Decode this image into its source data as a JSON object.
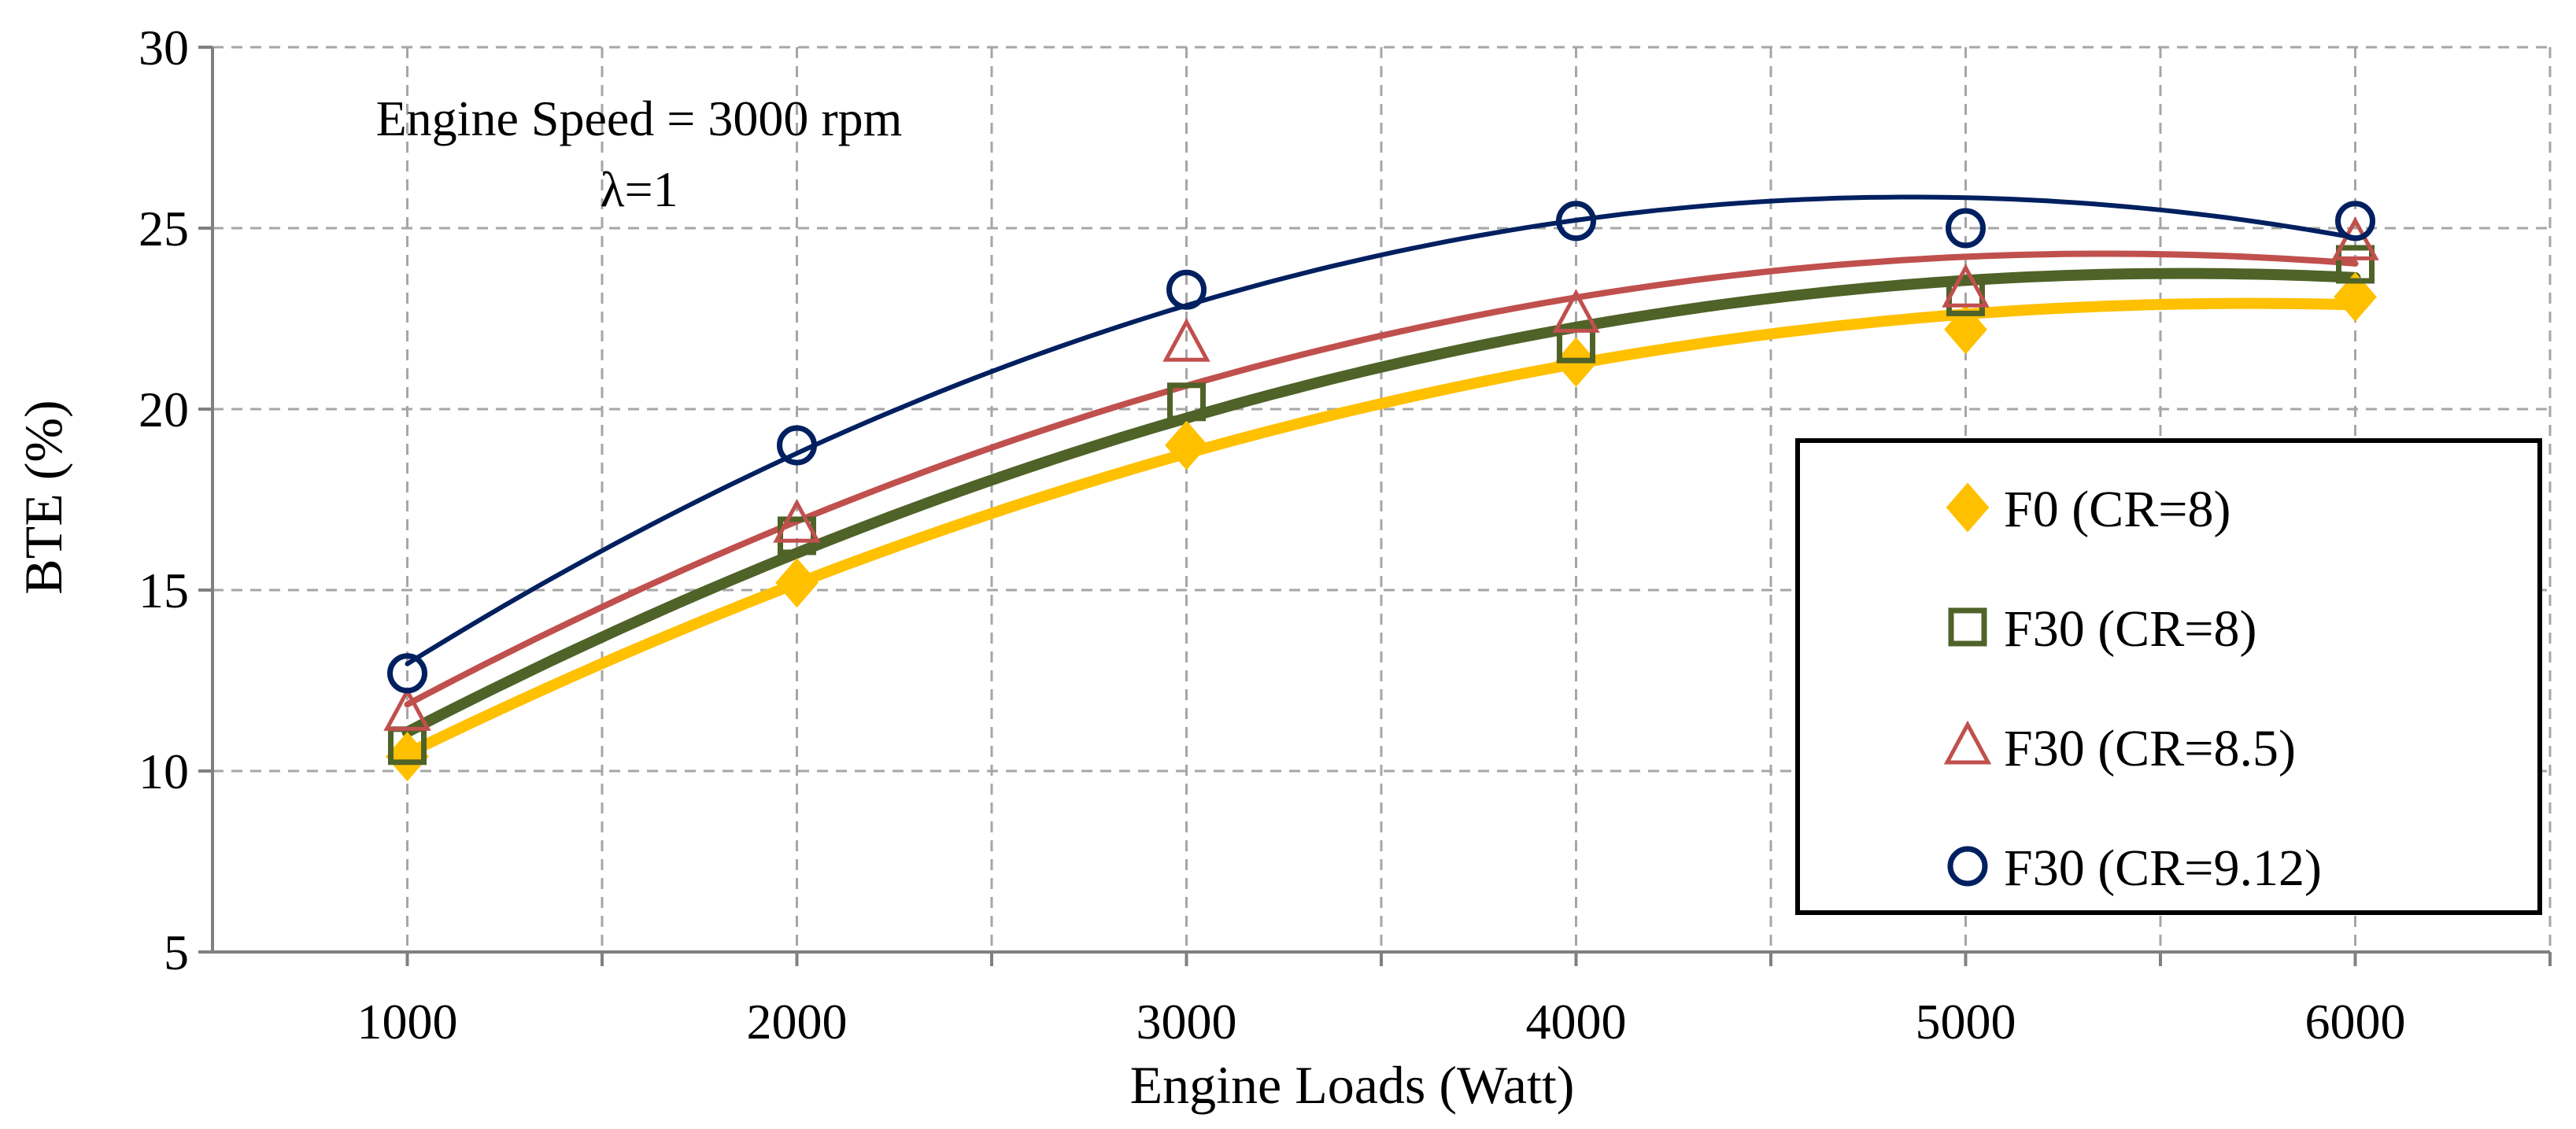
{
  "chart_data": {
    "type": "scatter",
    "title": "",
    "xlabel": "Engine Loads (Watt)",
    "ylabel": "BTE (%)",
    "xlim": [
      500,
      6500
    ],
    "ylim": [
      5,
      30
    ],
    "xticks": [
      1000,
      2000,
      3000,
      4000,
      5000,
      6000
    ],
    "yticks": [
      5,
      10,
      15,
      20,
      25,
      30
    ],
    "x_grid": [
      1000,
      1500,
      2000,
      2500,
      3000,
      3500,
      4000,
      4500,
      5000,
      5500,
      6000,
      6500
    ],
    "annotations": [
      "Engine Speed = 3000 rpm",
      "λ=1"
    ],
    "x": [
      1000,
      2000,
      3000,
      4000,
      5000,
      6000
    ],
    "series": [
      {
        "name": "F0 (CR=8)",
        "marker": "diamond",
        "color": "#FFC000",
        "line_width": 14,
        "values": [
          10.4,
          15.2,
          19.0,
          21.3,
          22.2,
          23.1
        ]
      },
      {
        "name": "F30 (CR=8)",
        "marker": "square",
        "color": "#4F6228",
        "line_width": 14,
        "values": [
          10.7,
          16.5,
          20.2,
          21.8,
          23.1,
          24.0
        ]
      },
      {
        "name": "F30 (CR=8.5)",
        "marker": "triangle",
        "color": "#C0504D",
        "line_width": 8,
        "values": [
          11.6,
          16.8,
          21.8,
          22.6,
          23.3,
          24.6
        ]
      },
      {
        "name": "F30 (CR=9.12)",
        "marker": "circle",
        "color": "#002060",
        "line_width": 6,
        "values": [
          12.7,
          19.0,
          23.3,
          25.2,
          25.0,
          25.2
        ]
      }
    ],
    "legend_position": "right"
  }
}
